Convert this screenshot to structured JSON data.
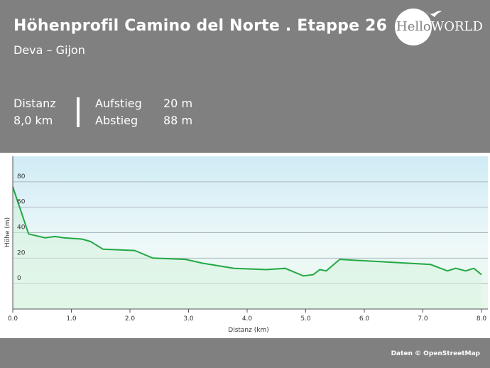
{
  "header": {
    "title": "Höhenprofil Camino del Norte . Etappe 26",
    "subtitle": "Deva – Gijon",
    "distance_label": "Distanz",
    "distance_value": "8,0 km",
    "ascent_label": "Aufstieg",
    "ascent_value": "20 m",
    "descent_label": "Abstieg",
    "descent_value": "88 m",
    "logo_text_a": "Hello",
    "logo_text_b": "WORLD"
  },
  "footer": {
    "credit": "Daten © OpenStreetMap"
  },
  "colors": {
    "line": "#22a844",
    "background": "#808080"
  },
  "chart_data": {
    "type": "area",
    "title": "",
    "xlabel": "Distanz  (km)",
    "ylabel": "Höhe (m)",
    "xlim": [
      0,
      8
    ],
    "ylim": [
      -20,
      100
    ],
    "xticks": [
      "0.0",
      "1.0",
      "2.0",
      "3.0",
      "4.0",
      "5.0",
      "6.0",
      "7.0",
      "8.0"
    ],
    "yticks": [
      "0",
      "20",
      "40",
      "60",
      "80"
    ],
    "grid": true,
    "x": [
      0,
      0.27,
      0.55,
      0.72,
      0.87,
      1.18,
      1.33,
      1.54,
      2.08,
      2.39,
      2.95,
      3.24,
      3.78,
      4.33,
      4.65,
      4.96,
      5.13,
      5.24,
      5.35,
      5.58,
      7.13,
      7.42,
      7.56,
      7.73,
      7.87,
      8.0
    ],
    "y": [
      76,
      39,
      36,
      37,
      36,
      35,
      33,
      27,
      26,
      20,
      19,
      16,
      12,
      11,
      12,
      6,
      7,
      11,
      10,
      19,
      15,
      10,
      12,
      10,
      12,
      7
    ]
  }
}
